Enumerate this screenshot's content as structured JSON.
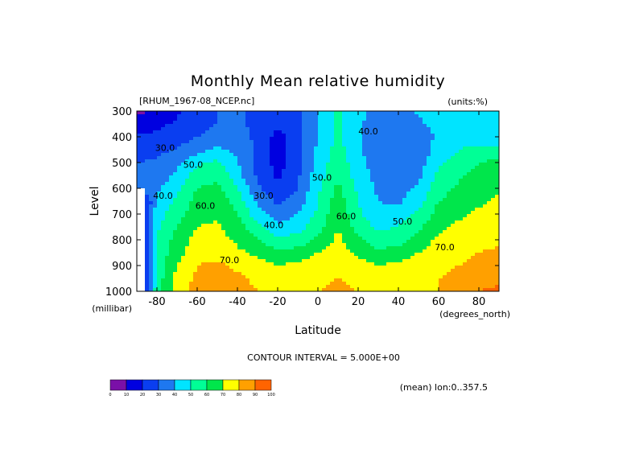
{
  "chart_data": {
    "type": "heatmap",
    "title": "Monthly Mean relative humidity",
    "subtitle_left": "[RHUM_1967-08_NCEP.nc]",
    "subtitle_right": "(units:%)",
    "xlabel": "Latitude",
    "xunits": "(degrees_north)",
    "ylabel": "Level",
    "yunits": "(millibar)",
    "xlim": [
      -90,
      90
    ],
    "ylim": [
      1000,
      300
    ],
    "x_ticks": [
      -80,
      -60,
      -40,
      -20,
      0,
      20,
      40,
      60,
      80
    ],
    "x_tick_labels": [
      "-80",
      "-60",
      "-40",
      "-20",
      "0",
      "20",
      "40",
      "60",
      "80"
    ],
    "y_ticks": [
      300,
      400,
      500,
      600,
      700,
      800,
      900,
      1000
    ],
    "y_tick_labels": [
      "300",
      "400",
      "500",
      "600",
      "700",
      "800",
      "900",
      "1000"
    ],
    "contour_interval_text": "CONTOUR INTERVAL = 5.000E+00",
    "mean_text": "(mean) lon:0..357.5",
    "levels": [
      0,
      10,
      20,
      30,
      40,
      50,
      60,
      70,
      80,
      90,
      100
    ],
    "level_labels": [
      "0",
      "10",
      "20",
      "30",
      "40",
      "50",
      "60",
      "70",
      "80",
      "90",
      "100"
    ],
    "colors": [
      "#7a10a8",
      "#0000e0",
      "#0a3ef0",
      "#1e78f0",
      "#00e4ff",
      "#00ff96",
      "#00e64b",
      "#ffff00",
      "#ffa000",
      "#ff6400",
      "#ff0000"
    ],
    "contour_labels": [
      {
        "text": "30.0",
        "lat": -76,
        "lev": 455
      },
      {
        "text": "50.0",
        "lat": -62,
        "lev": 520
      },
      {
        "text": "40.0",
        "lat": -77,
        "lev": 640
      },
      {
        "text": "60.0",
        "lat": -56,
        "lev": 680
      },
      {
        "text": "70.0",
        "lat": -44,
        "lev": 890
      },
      {
        "text": "30.0",
        "lat": -27,
        "lev": 640
      },
      {
        "text": "40.0",
        "lat": -22,
        "lev": 755
      },
      {
        "text": "50.0",
        "lat": 2,
        "lev": 570
      },
      {
        "text": "40.0",
        "lat": 25,
        "lev": 390
      },
      {
        "text": "60.0",
        "lat": 14,
        "lev": 720
      },
      {
        "text": "50.0",
        "lat": 42,
        "lev": 740
      },
      {
        "text": "70.0",
        "lat": 63,
        "lev": 840
      }
    ],
    "latitudes": [
      -90,
      -80,
      -70,
      -60,
      -50,
      -40,
      -30,
      -20,
      -10,
      0,
      10,
      20,
      30,
      40,
      50,
      60,
      70,
      80,
      90
    ],
    "pressure_levels": [
      300,
      350,
      400,
      450,
      500,
      550,
      600,
      650,
      700,
      750,
      800,
      850,
      900,
      950,
      1000
    ],
    "values": [
      [
        8,
        12,
        18,
        24,
        30,
        32,
        27,
        22,
        26,
        40,
        52,
        42,
        36,
        36,
        42,
        45,
        48,
        46,
        45
      ],
      [
        15,
        17,
        22,
        26,
        30,
        32,
        27,
        22,
        26,
        40,
        52,
        42,
        35,
        34,
        38,
        44,
        48,
        45,
        42
      ],
      [
        22,
        22,
        25,
        30,
        34,
        34,
        28,
        16,
        26,
        40,
        52,
        42,
        33,
        30,
        34,
        42,
        47,
        43,
        40
      ],
      [
        28,
        27,
        31,
        36,
        42,
        38,
        28,
        16,
        26,
        42,
        54,
        42,
        33,
        30,
        34,
        44,
        50,
        52,
        56
      ],
      [
        30,
        31,
        38,
        48,
        52,
        40,
        28,
        16,
        26,
        44,
        56,
        44,
        34,
        31,
        35,
        48,
        54,
        60,
        62
      ],
      [
        32,
        34,
        42,
        55,
        58,
        44,
        28,
        18,
        28,
        46,
        58,
        46,
        36,
        33,
        38,
        52,
        58,
        64,
        65
      ],
      [
        34,
        38,
        48,
        60,
        62,
        50,
        32,
        22,
        30,
        48,
        62,
        48,
        38,
        36,
        42,
        56,
        62,
        66,
        68
      ],
      [
        0,
        42,
        52,
        64,
        66,
        56,
        38,
        28,
        34,
        50,
        66,
        50,
        40,
        38,
        46,
        60,
        64,
        68,
        72
      ],
      [
        0,
        46,
        56,
        66,
        68,
        60,
        44,
        34,
        40,
        52,
        68,
        52,
        42,
        44,
        52,
        64,
        68,
        72,
        74
      ],
      [
        0,
        48,
        60,
        70,
        72,
        64,
        54,
        42,
        46,
        56,
        70,
        56,
        48,
        50,
        58,
        68,
        72,
        74,
        76
      ],
      [
        0,
        50,
        64,
        74,
        74,
        68,
        60,
        52,
        54,
        62,
        72,
        62,
        54,
        56,
        64,
        72,
        74,
        76,
        78
      ],
      [
        0,
        52,
        66,
        76,
        76,
        72,
        68,
        62,
        64,
        70,
        74,
        68,
        62,
        64,
        70,
        76,
        78,
        80,
        82
      ],
      [
        0,
        54,
        70,
        80,
        82,
        78,
        74,
        70,
        72,
        76,
        76,
        74,
        70,
        72,
        76,
        78,
        80,
        82,
        84
      ],
      [
        0,
        54,
        74,
        82,
        85,
        82,
        78,
        76,
        78,
        78,
        80,
        78,
        76,
        76,
        78,
        80,
        82,
        86,
        88
      ],
      [
        0,
        56,
        76,
        84,
        86,
        84,
        80,
        78,
        80,
        80,
        82,
        80,
        78,
        78,
        78,
        80,
        84,
        90,
        92
      ]
    ]
  }
}
